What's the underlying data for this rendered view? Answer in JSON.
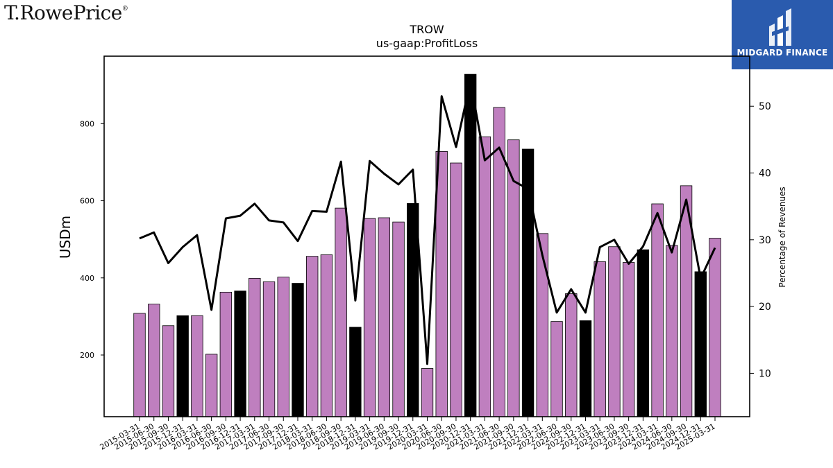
{
  "branding": {
    "left_logo_text": "T.RowePrice",
    "left_logo_mark": "®",
    "right_logo_text": "MIDGARD FINANCE",
    "right_logo_icon": "midgard-finance-logo-icon",
    "right_logo_bg": "#2a5bae"
  },
  "chart_data": {
    "type": "bar",
    "title": "TROW",
    "subtitle": "us-gaap:ProfitLoss",
    "ylabel": "USDm",
    "y2label": "Percentage of Revenues",
    "ylim": [
      40,
      975
    ],
    "y2lim": [
      3.5,
      57.5
    ],
    "yticks": [
      200,
      400,
      600,
      800
    ],
    "y2ticks": [
      10,
      20,
      30,
      40,
      50
    ],
    "grid": false,
    "bar_color": "#bf7fbf",
    "highlight_color": "#000000",
    "line_color": "#000000",
    "categories": [
      "2015-03-31",
      "2015-06-30",
      "2015-09-30",
      "2015-12-31",
      "2016-03-31",
      "2016-06-30",
      "2016-09-30",
      "2016-12-31",
      "2017-03-31",
      "2017-06-30",
      "2017-09-30",
      "2017-12-31",
      "2018-03-31",
      "2018-06-30",
      "2018-09-30",
      "2018-12-31",
      "2019-03-31",
      "2019-06-30",
      "2019-09-30",
      "2019-12-31",
      "2020-03-31",
      "2020-06-30",
      "2020-09-30",
      "2020-12-31",
      "2021-03-31",
      "2021-06-30",
      "2021-09-30",
      "2021-12-31",
      "2022-03-31",
      "2022-06-30",
      "2022-09-30",
      "2022-12-31",
      "2023-03-31",
      "2023-06-30",
      "2023-09-30",
      "2023-12-31",
      "2024-03-31",
      "2024-06-30",
      "2024-09-30",
      "2024-12-31",
      "2025-03-31"
    ],
    "series": [
      {
        "kind": "bar",
        "axis": "left",
        "values": [
          308,
          332,
          276,
          302,
          302,
          202,
          363,
          366,
          399,
          390,
          402,
          386,
          456,
          460,
          581,
          272,
          554,
          556,
          545,
          593,
          165,
          728,
          698,
          928,
          766,
          842,
          758,
          734,
          515,
          287,
          359,
          289,
          442,
          481,
          440,
          473,
          592,
          484,
          639,
          416,
          503
        ],
        "highlight": [
          false,
          false,
          false,
          true,
          false,
          false,
          false,
          true,
          false,
          false,
          false,
          true,
          false,
          false,
          false,
          true,
          false,
          false,
          false,
          true,
          false,
          false,
          false,
          true,
          false,
          false,
          false,
          true,
          false,
          false,
          false,
          true,
          false,
          false,
          false,
          true,
          false,
          false,
          false,
          true,
          false
        ]
      },
      {
        "kind": "line",
        "axis": "right",
        "values": [
          30.2,
          31.1,
          26.5,
          28.9,
          30.7,
          19.5,
          33.2,
          33.6,
          35.4,
          32.9,
          32.6,
          29.8,
          34.3,
          34.2,
          41.7,
          20.9,
          41.8,
          39.9,
          38.3,
          40.5,
          11.4,
          51.5,
          43.9,
          53.7,
          41.9,
          43.8,
          38.8,
          37.6,
          27.7,
          19.1,
          22.6,
          19.1,
          28.9,
          30.0,
          26.4,
          29.0,
          34.0,
          28.1,
          36.0,
          24.2,
          28.8
        ]
      }
    ]
  }
}
